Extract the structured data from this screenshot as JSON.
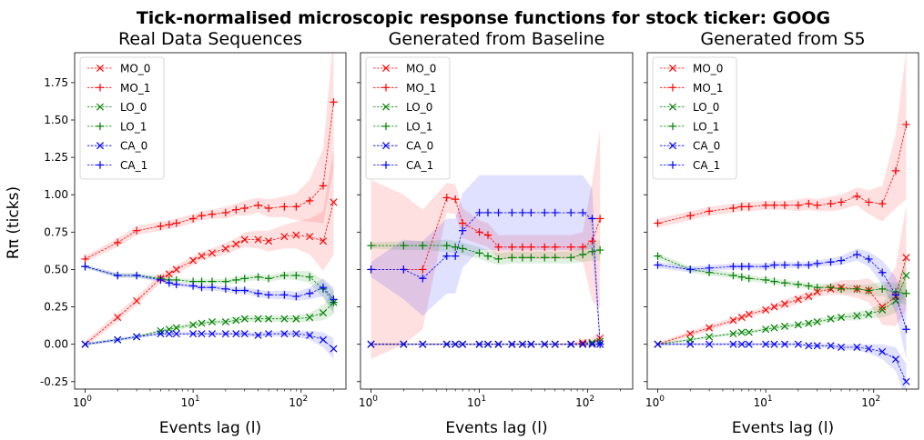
{
  "suptitle": "Tick-normalised microscopic response functions for stock ticker: GOOG",
  "ylabel": "Rπ (ticks)",
  "colors": {
    "MO": "#ff0000",
    "LO": "#008000",
    "CA": "#0000ff"
  },
  "x_ticks": [
    {
      "v": 1,
      "b": "10",
      "e": "0"
    },
    {
      "v": 10,
      "b": "10",
      "e": "1"
    },
    {
      "v": 100,
      "b": "10",
      "e": "2"
    }
  ],
  "y_ticks": [
    "-0.25",
    "0.00",
    "0.25",
    "0.50",
    "0.75",
    "1.00",
    "1.25",
    "1.50",
    "1.75"
  ],
  "chart_data": [
    {
      "type": "line",
      "title": "Real Data Sequences",
      "xlabel": "Events lag (l)",
      "xscale": "log",
      "xlim": [
        0.8,
        260
      ],
      "ylim": [
        -0.3,
        1.95
      ],
      "legend": "top-left",
      "x": [
        1,
        2,
        3,
        5,
        6,
        7,
        10,
        12,
        15,
        20,
        25,
        30,
        40,
        50,
        70,
        90,
        120,
        160,
        200
      ],
      "series": [
        {
          "name": "MO_0",
          "marker": "x",
          "values": [
            0.0,
            0.18,
            0.29,
            0.44,
            0.47,
            0.5,
            0.56,
            0.59,
            0.61,
            0.64,
            0.67,
            0.7,
            0.7,
            0.69,
            0.72,
            0.73,
            0.72,
            0.69,
            0.95
          ],
          "band": [
            0.02,
            0.03,
            0.03,
            0.03,
            0.03,
            0.03,
            0.03,
            0.03,
            0.03,
            0.04,
            0.04,
            0.05,
            0.06,
            0.07,
            0.08,
            0.09,
            0.12,
            0.2,
            0.35
          ]
        },
        {
          "name": "MO_1",
          "marker": "+",
          "values": [
            0.57,
            0.68,
            0.76,
            0.79,
            0.8,
            0.81,
            0.84,
            0.86,
            0.87,
            0.88,
            0.9,
            0.91,
            0.93,
            0.91,
            0.92,
            0.92,
            0.96,
            1.06,
            1.62
          ],
          "band": [
            0.02,
            0.03,
            0.03,
            0.03,
            0.03,
            0.03,
            0.03,
            0.03,
            0.03,
            0.04,
            0.04,
            0.05,
            0.05,
            0.06,
            0.07,
            0.09,
            0.14,
            0.25,
            0.45
          ]
        },
        {
          "name": "LO_0",
          "marker": "x",
          "values": [
            0.0,
            0.03,
            0.05,
            0.09,
            0.1,
            0.11,
            0.13,
            0.14,
            0.15,
            0.15,
            0.16,
            0.17,
            0.17,
            0.17,
            0.17,
            0.17,
            0.18,
            0.21,
            0.28
          ],
          "band": [
            0.01,
            0.01,
            0.01,
            0.01,
            0.01,
            0.015,
            0.015,
            0.015,
            0.015,
            0.015,
            0.02,
            0.02,
            0.02,
            0.02,
            0.02,
            0.025,
            0.03,
            0.05,
            0.08
          ]
        },
        {
          "name": "LO_1",
          "marker": "+",
          "values": [
            0.52,
            0.46,
            0.46,
            0.44,
            0.43,
            0.43,
            0.42,
            0.42,
            0.42,
            0.42,
            0.43,
            0.44,
            0.45,
            0.44,
            0.46,
            0.46,
            0.45,
            0.37,
            0.28
          ],
          "band": [
            0.01,
            0.015,
            0.015,
            0.015,
            0.015,
            0.015,
            0.015,
            0.015,
            0.015,
            0.015,
            0.02,
            0.02,
            0.02,
            0.02,
            0.025,
            0.03,
            0.04,
            0.06,
            0.08
          ]
        },
        {
          "name": "CA_0",
          "marker": "x",
          "values": [
            0.0,
            0.03,
            0.05,
            0.07,
            0.07,
            0.07,
            0.07,
            0.07,
            0.07,
            0.07,
            0.07,
            0.07,
            0.06,
            0.07,
            0.07,
            0.07,
            0.06,
            0.03,
            -0.03
          ],
          "band": [
            0.01,
            0.01,
            0.01,
            0.01,
            0.01,
            0.01,
            0.01,
            0.01,
            0.01,
            0.01,
            0.01,
            0.015,
            0.015,
            0.015,
            0.02,
            0.02,
            0.03,
            0.05,
            0.07
          ]
        },
        {
          "name": "CA_1",
          "marker": "+",
          "values": [
            0.52,
            0.46,
            0.46,
            0.43,
            0.41,
            0.4,
            0.39,
            0.38,
            0.38,
            0.37,
            0.36,
            0.36,
            0.34,
            0.33,
            0.33,
            0.32,
            0.34,
            0.38,
            0.3
          ],
          "band": [
            0.01,
            0.015,
            0.015,
            0.015,
            0.015,
            0.015,
            0.015,
            0.02,
            0.02,
            0.02,
            0.02,
            0.02,
            0.025,
            0.025,
            0.03,
            0.03,
            0.04,
            0.06,
            0.08
          ]
        }
      ]
    },
    {
      "type": "line",
      "title": "Generated from Baseline",
      "xlabel": "Events lag (l)",
      "xscale": "log",
      "xlim": [
        0.8,
        260
      ],
      "ylim": [
        -0.3,
        1.95
      ],
      "legend": "top-left",
      "x": [
        1,
        2,
        3,
        5,
        6,
        7,
        10,
        12,
        15,
        20,
        25,
        30,
        40,
        50,
        70,
        90,
        110,
        130
      ],
      "series": [
        {
          "name": "MO_0",
          "marker": "x",
          "values": [
            0.0,
            0.0,
            0.0,
            0.0,
            0.0,
            0.0,
            0.0,
            0.0,
            0.0,
            0.0,
            0.0,
            0.0,
            0.0,
            0.0,
            0.0,
            0.01,
            0.01,
            0.04
          ],
          "band": [
            0.005,
            0.005,
            0.005,
            0.005,
            0.005,
            0.005,
            0.005,
            0.005,
            0.005,
            0.005,
            0.005,
            0.005,
            0.005,
            0.005,
            0.01,
            0.02,
            0.03,
            0.05
          ]
        },
        {
          "name": "MO_1",
          "marker": "+",
          "values": [
            0.5,
            0.5,
            0.5,
            0.98,
            0.97,
            0.81,
            0.75,
            0.73,
            0.65,
            0.65,
            0.65,
            0.65,
            0.65,
            0.65,
            0.65,
            0.65,
            0.69,
            0.84
          ],
          "band": [
            0.6,
            0.5,
            0.4,
            0.1,
            0.1,
            0.1,
            0.08,
            0.08,
            0.08,
            0.08,
            0.08,
            0.08,
            0.08,
            0.08,
            0.08,
            0.1,
            0.4,
            0.6
          ]
        },
        {
          "name": "LO_0",
          "marker": "x",
          "values": [
            0.0,
            0.0,
            0.0,
            0.0,
            0.0,
            0.0,
            0.0,
            0.0,
            0.0,
            0.0,
            0.0,
            0.0,
            0.0,
            0.0,
            0.0,
            0.0,
            0.01,
            0.02
          ],
          "band": [
            0.005,
            0.005,
            0.005,
            0.005,
            0.005,
            0.005,
            0.005,
            0.005,
            0.005,
            0.005,
            0.005,
            0.005,
            0.005,
            0.005,
            0.005,
            0.01,
            0.015,
            0.02
          ]
        },
        {
          "name": "LO_1",
          "marker": "+",
          "values": [
            0.66,
            0.66,
            0.66,
            0.66,
            0.65,
            0.64,
            0.61,
            0.59,
            0.57,
            0.58,
            0.58,
            0.58,
            0.58,
            0.58,
            0.58,
            0.6,
            0.62,
            0.63
          ],
          "band": [
            0.02,
            0.03,
            0.03,
            0.04,
            0.04,
            0.04,
            0.04,
            0.04,
            0.04,
            0.04,
            0.04,
            0.04,
            0.04,
            0.04,
            0.04,
            0.05,
            0.06,
            0.07
          ]
        },
        {
          "name": "CA_0",
          "marker": "x",
          "values": [
            0.0,
            0.0,
            0.0,
            0.0,
            0.0,
            0.0,
            0.0,
            0.0,
            0.0,
            0.0,
            0.0,
            0.0,
            0.0,
            0.0,
            0.0,
            0.0,
            0.0,
            0.0
          ],
          "band": [
            0.005,
            0.005,
            0.005,
            0.005,
            0.005,
            0.005,
            0.005,
            0.005,
            0.005,
            0.005,
            0.005,
            0.005,
            0.005,
            0.005,
            0.005,
            0.005,
            0.005,
            0.005
          ]
        },
        {
          "name": "CA_1",
          "marker": "+",
          "values": [
            0.5,
            0.5,
            0.44,
            0.59,
            0.59,
            0.76,
            0.88,
            0.88,
            0.88,
            0.88,
            0.88,
            0.88,
            0.88,
            0.88,
            0.88,
            0.88,
            0.84,
            0.0
          ],
          "band": [
            0.05,
            0.2,
            0.25,
            0.25,
            0.25,
            0.25,
            0.25,
            0.25,
            0.25,
            0.25,
            0.25,
            0.25,
            0.25,
            0.25,
            0.25,
            0.25,
            0.2,
            0.05
          ]
        }
      ]
    },
    {
      "type": "line",
      "title": "Generated from S5",
      "xlabel": "Events lag (l)",
      "xscale": "log",
      "xlim": [
        0.8,
        260
      ],
      "ylim": [
        -0.3,
        1.95
      ],
      "legend": "top-left",
      "x": [
        1,
        2,
        3,
        5,
        6,
        7,
        10,
        12,
        15,
        20,
        25,
        30,
        40,
        50,
        70,
        90,
        120,
        160,
        200
      ],
      "series": [
        {
          "name": "MO_0",
          "marker": "x",
          "values": [
            0.0,
            0.07,
            0.11,
            0.16,
            0.18,
            0.2,
            0.23,
            0.25,
            0.27,
            0.3,
            0.32,
            0.35,
            0.37,
            0.38,
            0.37,
            0.36,
            0.25,
            0.32,
            0.58
          ],
          "band": [
            0.01,
            0.02,
            0.02,
            0.02,
            0.02,
            0.02,
            0.02,
            0.02,
            0.03,
            0.03,
            0.03,
            0.03,
            0.04,
            0.05,
            0.06,
            0.08,
            0.12,
            0.2,
            0.35
          ]
        },
        {
          "name": "MO_1",
          "marker": "+",
          "values": [
            0.81,
            0.86,
            0.89,
            0.91,
            0.92,
            0.92,
            0.93,
            0.93,
            0.93,
            0.93,
            0.94,
            0.93,
            0.94,
            0.95,
            0.99,
            0.95,
            0.94,
            1.16,
            1.47
          ],
          "band": [
            0.03,
            0.03,
            0.03,
            0.03,
            0.03,
            0.03,
            0.03,
            0.03,
            0.03,
            0.04,
            0.04,
            0.04,
            0.05,
            0.05,
            0.06,
            0.08,
            0.12,
            0.25,
            0.5
          ]
        },
        {
          "name": "LO_0",
          "marker": "x",
          "values": [
            0.0,
            0.03,
            0.05,
            0.07,
            0.08,
            0.08,
            0.1,
            0.11,
            0.12,
            0.13,
            0.14,
            0.15,
            0.17,
            0.18,
            0.19,
            0.2,
            0.23,
            0.29,
            0.46
          ],
          "band": [
            0.01,
            0.01,
            0.01,
            0.01,
            0.01,
            0.01,
            0.015,
            0.015,
            0.015,
            0.015,
            0.02,
            0.02,
            0.02,
            0.02,
            0.03,
            0.03,
            0.05,
            0.08,
            0.12
          ]
        },
        {
          "name": "LO_1",
          "marker": "+",
          "values": [
            0.59,
            0.5,
            0.48,
            0.46,
            0.45,
            0.44,
            0.43,
            0.42,
            0.41,
            0.4,
            0.39,
            0.38,
            0.38,
            0.37,
            0.37,
            0.36,
            0.37,
            0.35,
            0.34
          ],
          "band": [
            0.02,
            0.02,
            0.02,
            0.02,
            0.02,
            0.02,
            0.02,
            0.02,
            0.02,
            0.02,
            0.02,
            0.025,
            0.025,
            0.03,
            0.03,
            0.04,
            0.05,
            0.06,
            0.08
          ]
        },
        {
          "name": "CA_0",
          "marker": "x",
          "values": [
            0.0,
            0.0,
            0.0,
            0.0,
            0.0,
            0.0,
            0.0,
            0.0,
            0.0,
            0.0,
            -0.01,
            -0.01,
            -0.01,
            -0.02,
            -0.02,
            -0.03,
            -0.05,
            -0.1,
            -0.25
          ],
          "band": [
            0.01,
            0.01,
            0.01,
            0.01,
            0.01,
            0.01,
            0.01,
            0.01,
            0.01,
            0.01,
            0.01,
            0.015,
            0.015,
            0.02,
            0.02,
            0.03,
            0.05,
            0.08,
            0.12
          ]
        },
        {
          "name": "CA_1",
          "marker": "+",
          "values": [
            0.53,
            0.5,
            0.51,
            0.52,
            0.52,
            0.52,
            0.52,
            0.53,
            0.53,
            0.53,
            0.53,
            0.54,
            0.55,
            0.56,
            0.6,
            0.57,
            0.48,
            0.33,
            0.1
          ],
          "band": [
            0.02,
            0.02,
            0.02,
            0.02,
            0.02,
            0.02,
            0.02,
            0.02,
            0.02,
            0.02,
            0.02,
            0.02,
            0.025,
            0.03,
            0.04,
            0.05,
            0.08,
            0.12,
            0.2
          ]
        }
      ]
    }
  ]
}
